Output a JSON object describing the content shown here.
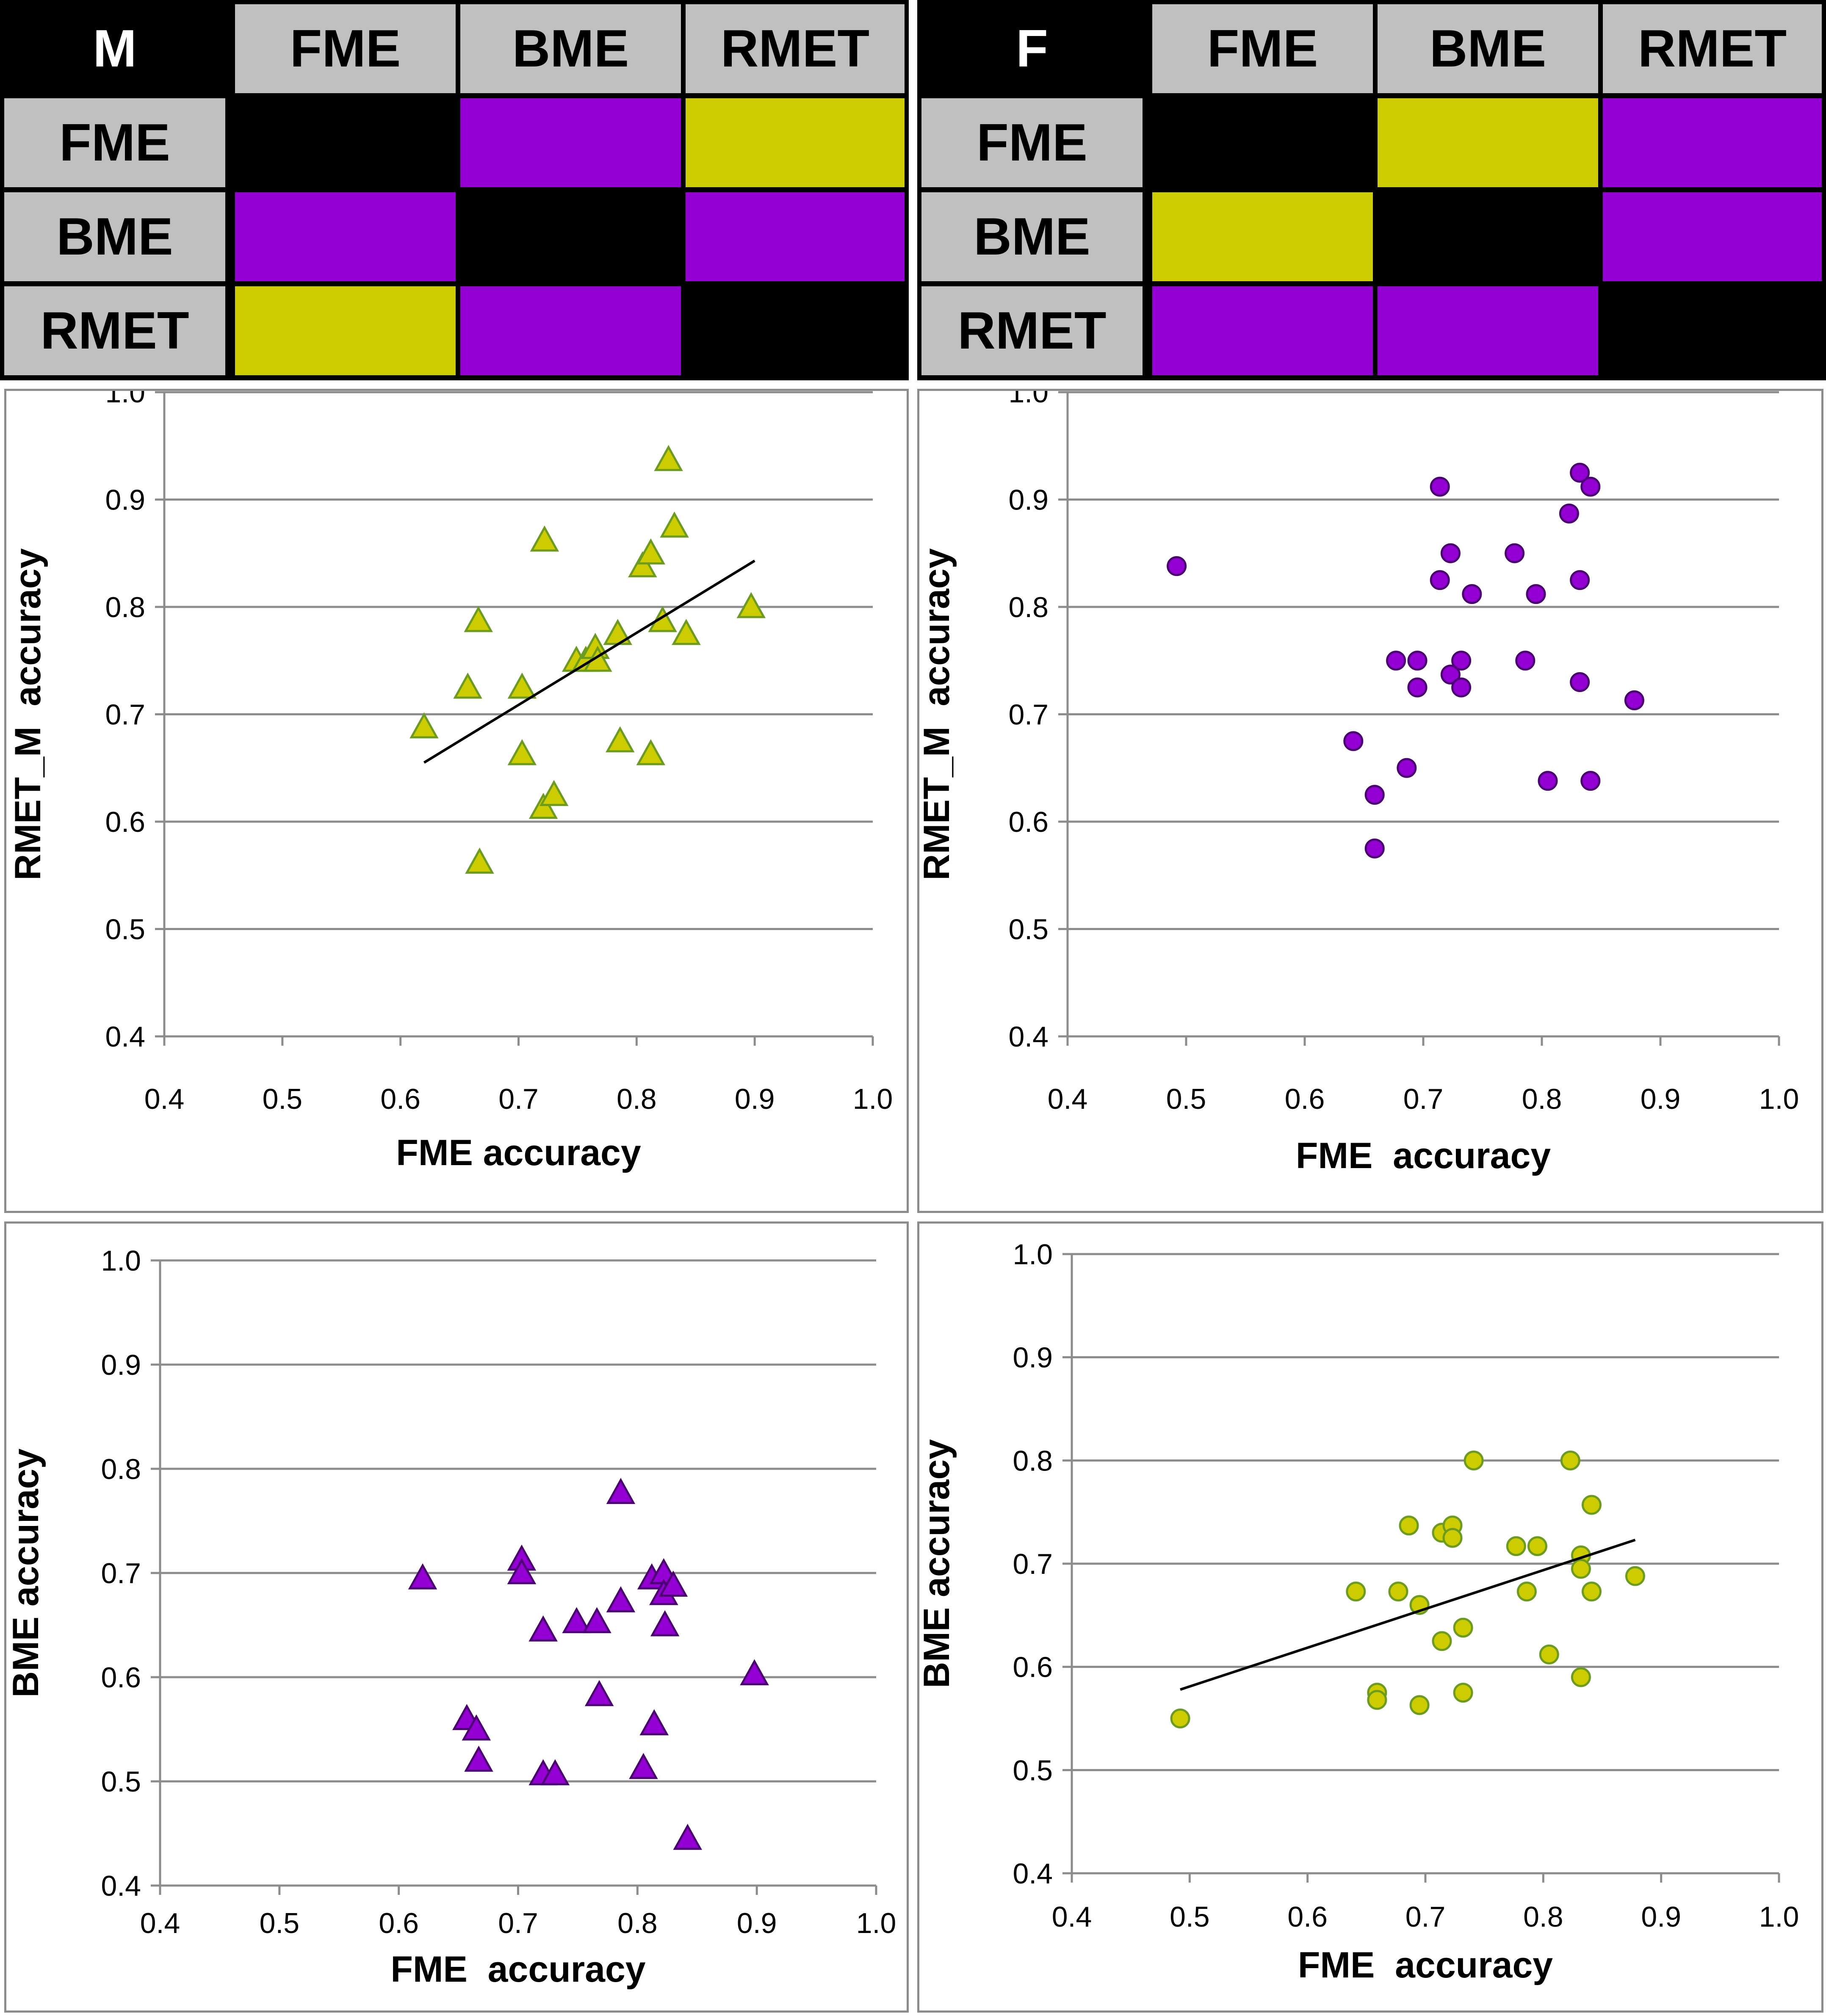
{
  "colors": {
    "yellow": "#cccc00",
    "purple": "#9400d3",
    "gray": "#c0c0c0",
    "black": "#000000",
    "green_edge": "#6b9b1f",
    "purple_edge": "#4b0073"
  },
  "matrices": [
    {
      "id": "m",
      "corner": "M",
      "columns": [
        "FME",
        "BME",
        "RMET"
      ],
      "rows": [
        "FME",
        "BME",
        "RMET"
      ],
      "cells": [
        [
          "black",
          "purple",
          "yellow"
        ],
        [
          "purple",
          "black",
          "purple"
        ],
        [
          "yellow",
          "purple",
          "black"
        ]
      ]
    },
    {
      "id": "f",
      "corner": "F",
      "columns": [
        "FME",
        "BME",
        "RMET"
      ],
      "rows": [
        "FME",
        "BME",
        "RMET"
      ],
      "cells": [
        [
          "black",
          "yellow",
          "purple"
        ],
        [
          "yellow",
          "black",
          "purple"
        ],
        [
          "purple",
          "purple",
          "black"
        ]
      ]
    }
  ],
  "chart_data": [
    {
      "id": "m-rmet",
      "type": "scatter",
      "xlabel": "FME accuracy",
      "ylabel": "RMET_M  accuracy",
      "xlim": [
        0.4,
        1.0
      ],
      "ylim": [
        0.4,
        1.0
      ],
      "xticks": [
        "0.4",
        "0.5",
        "0.6",
        "0.7",
        "0.8",
        "0.9",
        "1.0"
      ],
      "yticks": [
        "0.4",
        "0.5",
        "0.6",
        "0.7",
        "0.8",
        "0.9",
        "1.0"
      ],
      "grid": true,
      "marker": "triangle",
      "marker_color": "yellow",
      "marker_edge": "green_edge",
      "trendline": [
        [
          0.62,
          0.655
        ],
        [
          0.9,
          0.843
        ]
      ],
      "points": [
        [
          0.62,
          0.688
        ],
        [
          0.657,
          0.725
        ],
        [
          0.666,
          0.787
        ],
        [
          0.667,
          0.562
        ],
        [
          0.703,
          0.663
        ],
        [
          0.703,
          0.725
        ],
        [
          0.721,
          0.613
        ],
        [
          0.722,
          0.862
        ],
        [
          0.73,
          0.625
        ],
        [
          0.749,
          0.75
        ],
        [
          0.757,
          0.75
        ],
        [
          0.765,
          0.762
        ],
        [
          0.767,
          0.75
        ],
        [
          0.784,
          0.775
        ],
        [
          0.786,
          0.675
        ],
        [
          0.805,
          0.838
        ],
        [
          0.812,
          0.85
        ],
        [
          0.812,
          0.663
        ],
        [
          0.822,
          0.787
        ],
        [
          0.827,
          0.937
        ],
        [
          0.832,
          0.875
        ],
        [
          0.842,
          0.775
        ],
        [
          0.897,
          0.8
        ]
      ]
    },
    {
      "id": "f-rmet",
      "type": "scatter",
      "xlabel": "FME  accuracy",
      "ylabel": "RMET_M  accuracy",
      "xlim": [
        0.4,
        1.0
      ],
      "ylim": [
        0.4,
        1.0
      ],
      "xticks": [
        "0.4",
        "0.5",
        "0.6",
        "0.7",
        "0.8",
        "0.9",
        "1.0"
      ],
      "yticks": [
        "0.4",
        "0.5",
        "0.6",
        "0.7",
        "0.8",
        "0.9",
        "1.0"
      ],
      "grid": true,
      "marker": "circle",
      "marker_color": "purple",
      "marker_edge": "purple_edge",
      "points": [
        [
          0.492,
          0.838
        ],
        [
          0.641,
          0.675
        ],
        [
          0.659,
          0.625
        ],
        [
          0.659,
          0.575
        ],
        [
          0.677,
          0.75
        ],
        [
          0.686,
          0.65
        ],
        [
          0.695,
          0.75
        ],
        [
          0.695,
          0.725
        ],
        [
          0.714,
          0.912
        ],
        [
          0.714,
          0.825
        ],
        [
          0.723,
          0.85
        ],
        [
          0.723,
          0.737
        ],
        [
          0.732,
          0.75
        ],
        [
          0.732,
          0.725
        ],
        [
          0.741,
          0.812
        ],
        [
          0.777,
          0.85
        ],
        [
          0.786,
          0.75
        ],
        [
          0.795,
          0.812
        ],
        [
          0.805,
          0.638
        ],
        [
          0.823,
          0.887
        ],
        [
          0.832,
          0.925
        ],
        [
          0.832,
          0.825
        ],
        [
          0.832,
          0.73
        ],
        [
          0.841,
          0.912
        ],
        [
          0.841,
          0.638
        ],
        [
          0.878,
          0.713
        ]
      ]
    },
    {
      "id": "m-bme",
      "type": "scatter",
      "xlabel": "FME  accuracy",
      "ylabel": "BME accuracy",
      "xlim": [
        0.4,
        1.0
      ],
      "ylim": [
        0.4,
        1.0
      ],
      "xticks": [
        "0.4",
        "0.5",
        "0.6",
        "0.7",
        "0.8",
        "0.9",
        "1.0"
      ],
      "yticks": [
        "0.4",
        "0.5",
        "0.6",
        "0.7",
        "0.8",
        "0.9",
        "1.0"
      ],
      "grid": true,
      "marker": "triangle",
      "marker_color": "purple",
      "marker_edge": "purple_edge",
      "points": [
        [
          0.62,
          0.695
        ],
        [
          0.657,
          0.56
        ],
        [
          0.665,
          0.55
        ],
        [
          0.667,
          0.52
        ],
        [
          0.703,
          0.713
        ],
        [
          0.703,
          0.7
        ],
        [
          0.721,
          0.645
        ],
        [
          0.721,
          0.507
        ],
        [
          0.731,
          0.507
        ],
        [
          0.749,
          0.653
        ],
        [
          0.766,
          0.653
        ],
        [
          0.768,
          0.583
        ],
        [
          0.786,
          0.777
        ],
        [
          0.786,
          0.673
        ],
        [
          0.805,
          0.513
        ],
        [
          0.812,
          0.695
        ],
        [
          0.814,
          0.555
        ],
        [
          0.822,
          0.7
        ],
        [
          0.822,
          0.68
        ],
        [
          0.823,
          0.65
        ],
        [
          0.83,
          0.688
        ],
        [
          0.842,
          0.445
        ],
        [
          0.898,
          0.603
        ]
      ]
    },
    {
      "id": "f-bme",
      "type": "scatter",
      "xlabel": "FME  accuracy",
      "ylabel": "BME accuracy",
      "xlim": [
        0.4,
        1.0
      ],
      "ylim": [
        0.4,
        1.0
      ],
      "xticks": [
        "0.4",
        "0.5",
        "0.6",
        "0.7",
        "0.8",
        "0.9",
        "1.0"
      ],
      "yticks": [
        "0.4",
        "0.5",
        "0.6",
        "0.7",
        "0.8",
        "0.9",
        "1.0"
      ],
      "grid": true,
      "marker": "circle",
      "marker_color": "yellow",
      "marker_edge": "green_edge",
      "trendline": [
        [
          0.492,
          0.578
        ],
        [
          0.878,
          0.723
        ]
      ],
      "points": [
        [
          0.492,
          0.55
        ],
        [
          0.641,
          0.673
        ],
        [
          0.659,
          0.575
        ],
        [
          0.659,
          0.568
        ],
        [
          0.677,
          0.673
        ],
        [
          0.686,
          0.737
        ],
        [
          0.695,
          0.66
        ],
        [
          0.695,
          0.563
        ],
        [
          0.714,
          0.73
        ],
        [
          0.714,
          0.625
        ],
        [
          0.723,
          0.737
        ],
        [
          0.723,
          0.725
        ],
        [
          0.732,
          0.638
        ],
        [
          0.732,
          0.575
        ],
        [
          0.741,
          0.8
        ],
        [
          0.777,
          0.717
        ],
        [
          0.786,
          0.673
        ],
        [
          0.795,
          0.717
        ],
        [
          0.805,
          0.612
        ],
        [
          0.823,
          0.8
        ],
        [
          0.832,
          0.708
        ],
        [
          0.832,
          0.695
        ],
        [
          0.832,
          0.59
        ],
        [
          0.841,
          0.757
        ],
        [
          0.841,
          0.673
        ],
        [
          0.878,
          0.688
        ]
      ]
    }
  ]
}
